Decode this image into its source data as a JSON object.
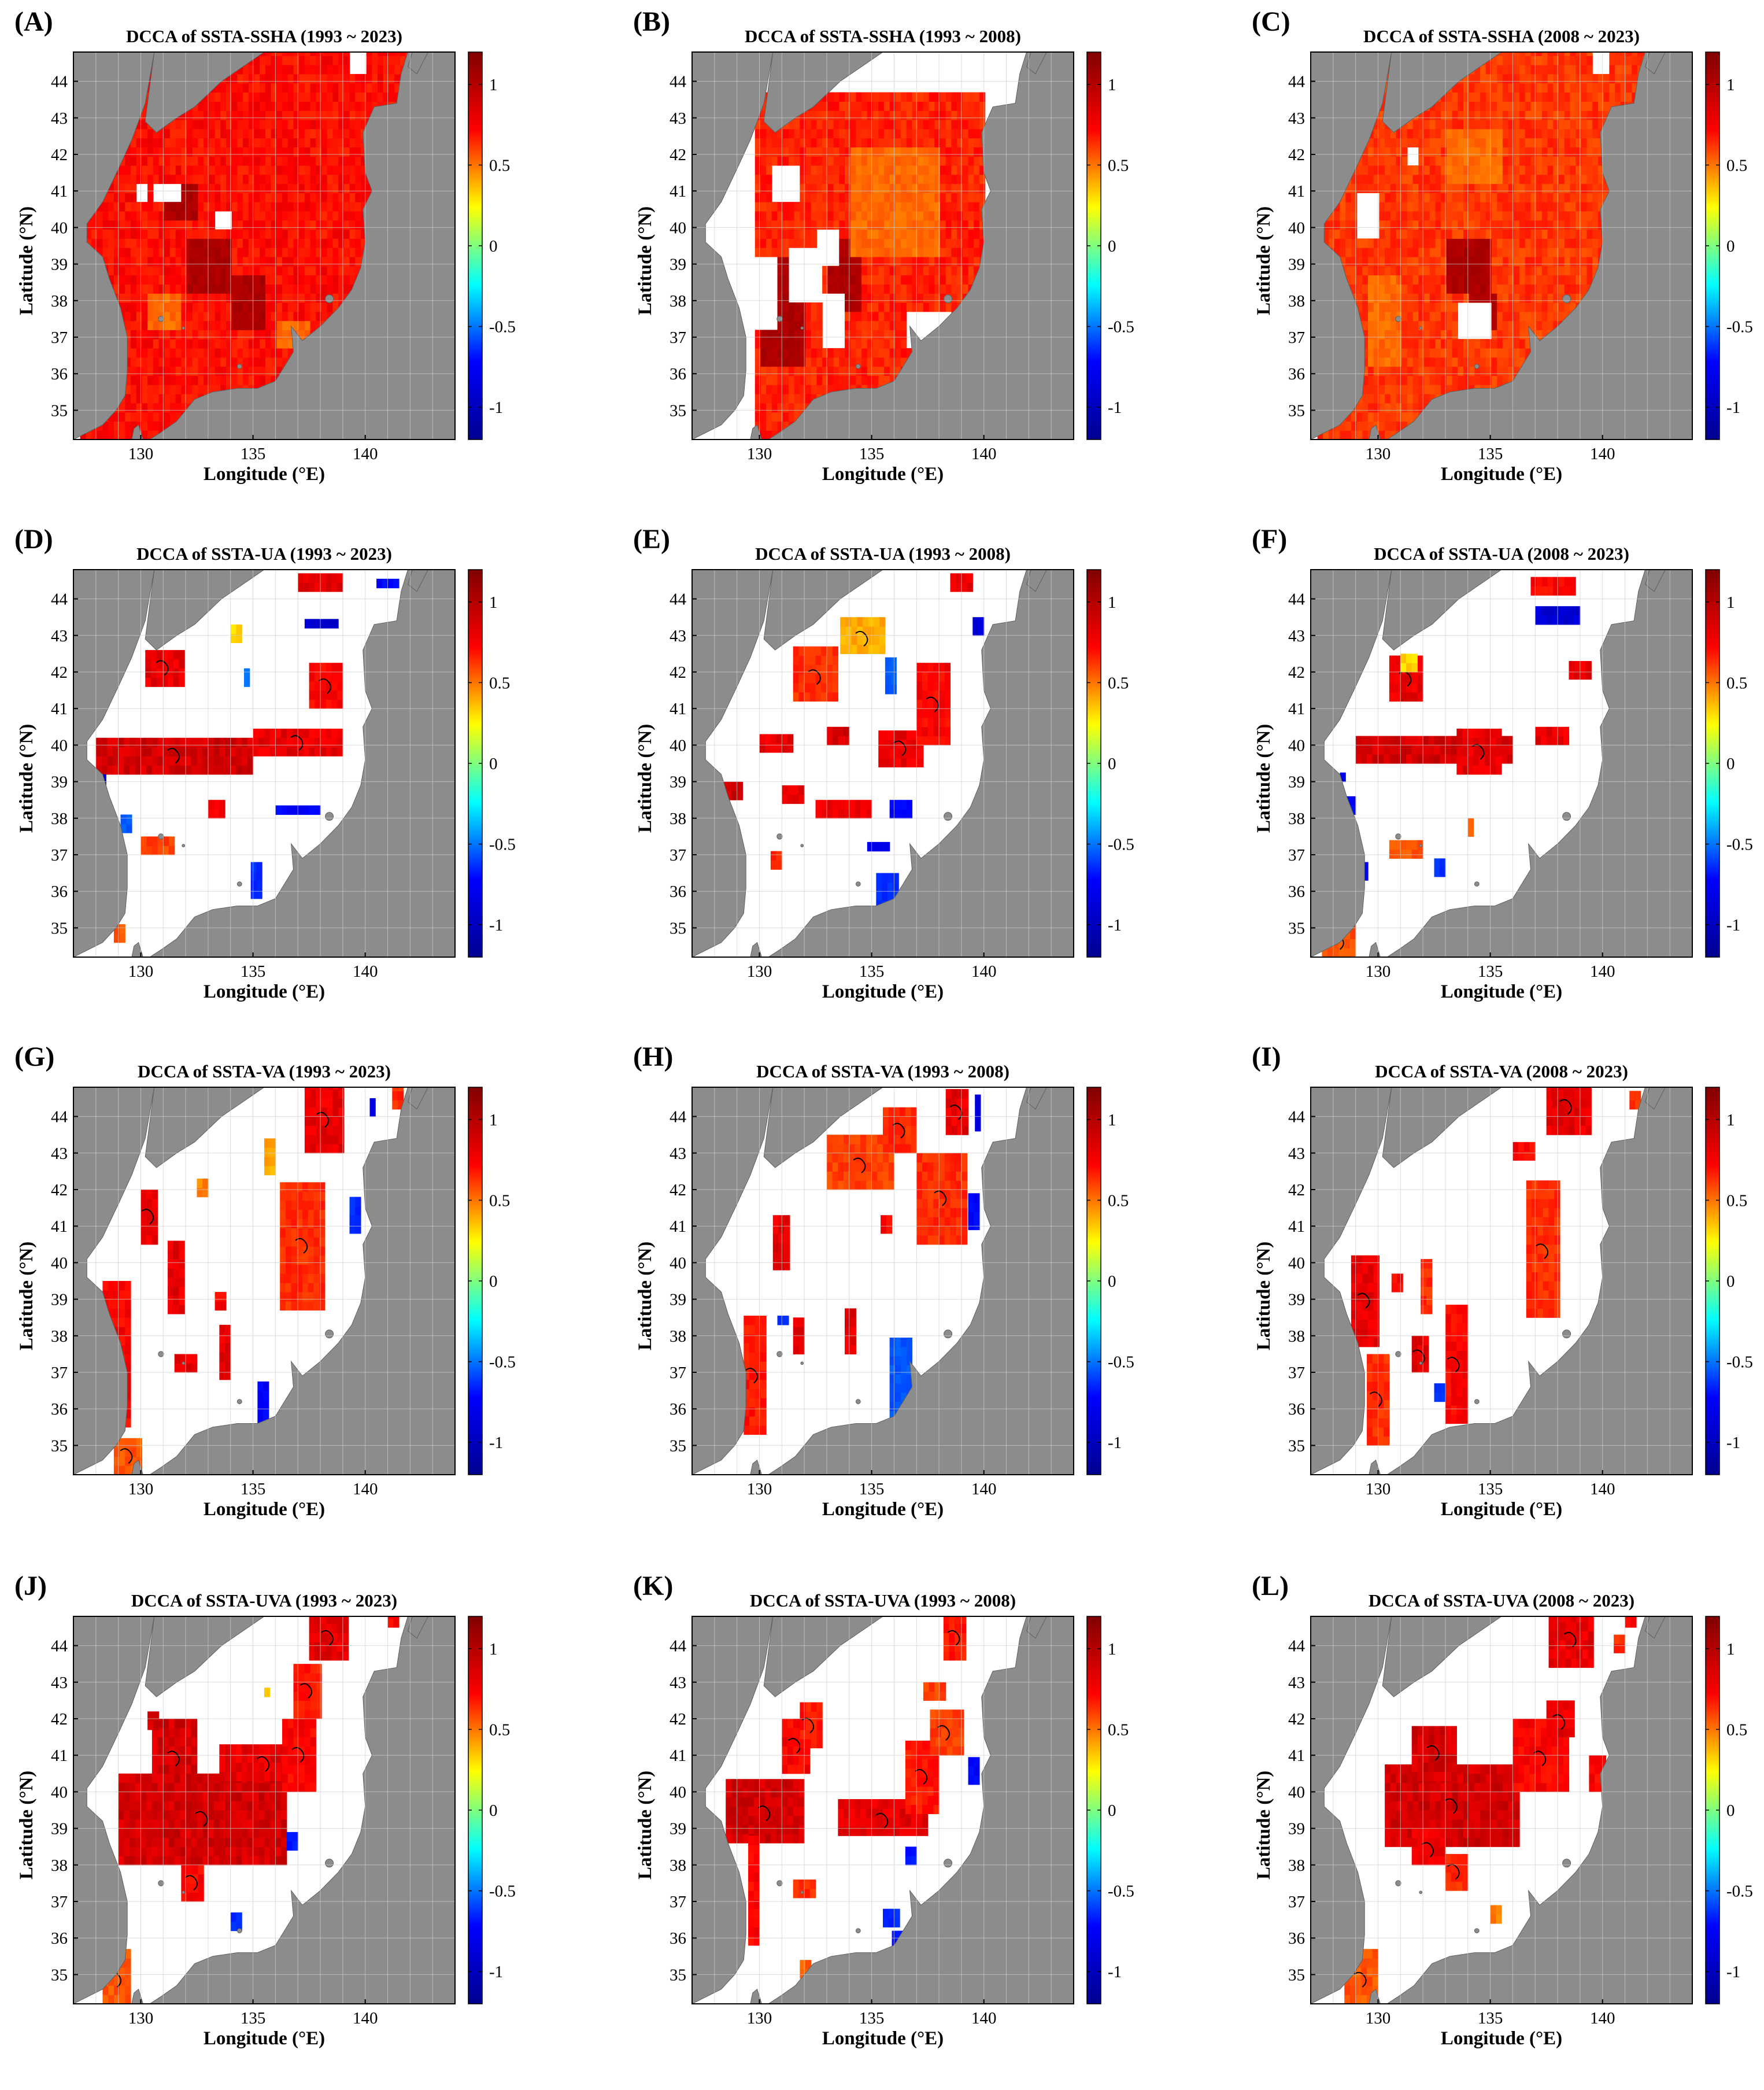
{
  "figure": {
    "colorbar": {
      "colors": [
        "#00008f",
        "#0000ff",
        "#00ffff",
        "#ffff00",
        "#ff0000",
        "#800000"
      ]
    },
    "land_color": "#8c8c8c",
    "sea_color": "#ffffff",
    "grid_color": "#cfcfcf",
    "contour_color": "#000000"
  },
  "chart_data": [
    {
      "id": "A",
      "type": "heatmap",
      "panel_label": "(A)",
      "title": "DCCA of SSTA-SSHA (1993 ~ 2023)",
      "variable_pair": "SSTA-SSHA",
      "period": "1993 ~ 2023",
      "xlabel": "Longitude (°E)",
      "ylabel": "Latitude (°N)",
      "xlim": [
        127,
        144
      ],
      "ylim": [
        34.2,
        44.8
      ],
      "xticks": [
        "130",
        "135",
        "140"
      ],
      "yticks": [
        "35",
        "36",
        "37",
        "38",
        "39",
        "40",
        "41",
        "42",
        "43",
        "44"
      ],
      "colorbar_ticks": [
        "1",
        "0.5",
        "0",
        "-0.5",
        "-1"
      ],
      "clim": [
        -1.2,
        1.2
      ],
      "coverage": "nearly full basin",
      "dominant_value": 0.95,
      "min_value": 0.4
    },
    {
      "id": "B",
      "type": "heatmap",
      "panel_label": "(B)",
      "title": "DCCA of SSTA-SSHA (1993 ~ 2008)",
      "variable_pair": "SSTA-SSHA",
      "period": "1993 ~ 2008",
      "xlabel": "Longitude (°E)",
      "ylabel": "Latitude (°N)",
      "xlim": [
        127,
        144
      ],
      "ylim": [
        34.2,
        44.8
      ],
      "xticks": [
        "130",
        "135",
        "140"
      ],
      "yticks": [
        "35",
        "36",
        "37",
        "38",
        "39",
        "40",
        "41",
        "42",
        "43",
        "44"
      ],
      "colorbar_ticks": [
        "1",
        "0.5",
        "0",
        "-0.5",
        "-1"
      ],
      "clim": [
        -1.2,
        1.2
      ],
      "coverage": "southern and central basin",
      "dominant_value": 0.9,
      "min_value": 0.6
    },
    {
      "id": "C",
      "type": "heatmap",
      "panel_label": "(C)",
      "title": "DCCA of SSTA-SSHA (2008 ~ 2023)",
      "variable_pair": "SSTA-SSHA",
      "period": "2008 ~ 2023",
      "xlabel": "Longitude (°E)",
      "ylabel": "Latitude (°N)",
      "xlim": [
        127,
        144
      ],
      "ylim": [
        34.2,
        44.8
      ],
      "xticks": [
        "130",
        "135",
        "140"
      ],
      "yticks": [
        "35",
        "36",
        "37",
        "38",
        "39",
        "40",
        "41",
        "42",
        "43",
        "44"
      ],
      "colorbar_ticks": [
        "1",
        "0.5",
        "0",
        "-0.5",
        "-1"
      ],
      "clim": [
        -1.2,
        1.2
      ],
      "coverage": "nearly full basin",
      "dominant_value": 0.85,
      "min_value": 0.35
    },
    {
      "id": "D",
      "type": "heatmap",
      "panel_label": "(D)",
      "title": "DCCA of SSTA-UA (1993 ~ 2023)",
      "variable_pair": "SSTA-UA",
      "period": "1993 ~ 2023",
      "xlabel": "Longitude (°E)",
      "ylabel": "Latitude (°N)",
      "xlim": [
        127,
        144
      ],
      "ylim": [
        34.2,
        44.8
      ],
      "xticks": [
        "130",
        "135",
        "140"
      ],
      "yticks": [
        "35",
        "36",
        "37",
        "38",
        "39",
        "40",
        "41",
        "42",
        "43",
        "44"
      ],
      "colorbar_ticks": [
        "1",
        "0.5",
        "0",
        "-0.5",
        "-1"
      ],
      "clim": [
        -1.2,
        1.2
      ],
      "coverage": "zonal band near 39.5°N, sparse patches",
      "dominant_value": 0.95,
      "min_value": -1.0
    },
    {
      "id": "E",
      "type": "heatmap",
      "panel_label": "(E)",
      "title": "DCCA of SSTA-UA (1993 ~ 2008)",
      "variable_pair": "SSTA-UA",
      "period": "1993 ~ 2008",
      "xlabel": "Longitude (°E)",
      "ylabel": "Latitude (°N)",
      "xlim": [
        127,
        144
      ],
      "ylim": [
        34.2,
        44.8
      ],
      "xticks": [
        "130",
        "135",
        "140"
      ],
      "yticks": [
        "35",
        "36",
        "37",
        "38",
        "39",
        "40",
        "41",
        "42",
        "43",
        "44"
      ],
      "colorbar_ticks": [
        "1",
        "0.5",
        "0",
        "-0.5",
        "-1"
      ],
      "clim": [
        -1.2,
        1.2
      ],
      "coverage": "sparse patches",
      "dominant_value": 0.9,
      "min_value": -0.95
    },
    {
      "id": "F",
      "type": "heatmap",
      "panel_label": "(F)",
      "title": "DCCA of SSTA-UA (2008 ~ 2023)",
      "variable_pair": "SSTA-UA",
      "period": "2008 ~ 2023",
      "xlabel": "Longitude (°E)",
      "ylabel": "Latitude (°N)",
      "xlim": [
        127,
        144
      ],
      "ylim": [
        34.2,
        44.8
      ],
      "xticks": [
        "130",
        "135",
        "140"
      ],
      "yticks": [
        "35",
        "36",
        "37",
        "38",
        "39",
        "40",
        "41",
        "42",
        "43",
        "44"
      ],
      "colorbar_ticks": [
        "1",
        "0.5",
        "0",
        "-0.5",
        "-1"
      ],
      "clim": [
        -1.2,
        1.2
      ],
      "coverage": "zonal band near 39.8°N, sparse patches",
      "dominant_value": 0.95,
      "min_value": -1.0
    },
    {
      "id": "G",
      "type": "heatmap",
      "panel_label": "(G)",
      "title": "DCCA of SSTA-VA (1993 ~ 2023)",
      "variable_pair": "SSTA-VA",
      "period": "1993 ~ 2023",
      "xlabel": "Longitude (°E)",
      "ylabel": "Latitude (°N)",
      "xlim": [
        127,
        144
      ],
      "ylim": [
        34.2,
        44.8
      ],
      "xticks": [
        "130",
        "135",
        "140"
      ],
      "yticks": [
        "35",
        "36",
        "37",
        "38",
        "39",
        "40",
        "41",
        "42",
        "43",
        "44"
      ],
      "colorbar_ticks": [
        "1",
        "0.5",
        "0",
        "-0.5",
        "-1"
      ],
      "clim": [
        -1.2,
        1.2
      ],
      "coverage": "meridional strips along coasts",
      "dominant_value": 0.9,
      "min_value": -0.9
    },
    {
      "id": "H",
      "type": "heatmap",
      "panel_label": "(H)",
      "title": "DCCA of SSTA-VA (1993 ~ 2008)",
      "variable_pair": "SSTA-VA",
      "period": "1993 ~ 2008",
      "xlabel": "Longitude (°E)",
      "ylabel": "Latitude (°N)",
      "xlim": [
        127,
        144
      ],
      "ylim": [
        34.2,
        44.8
      ],
      "xticks": [
        "130",
        "135",
        "140"
      ],
      "yticks": [
        "35",
        "36",
        "37",
        "38",
        "39",
        "40",
        "41",
        "42",
        "43",
        "44"
      ],
      "colorbar_ticks": [
        "1",
        "0.5",
        "0",
        "-0.5",
        "-1"
      ],
      "clim": [
        -1.2,
        1.2
      ],
      "coverage": "sparse strips",
      "dominant_value": 0.85,
      "min_value": -0.8
    },
    {
      "id": "I",
      "type": "heatmap",
      "panel_label": "(I)",
      "title": "DCCA of SSTA-VA (2008 ~ 2023)",
      "variable_pair": "SSTA-VA",
      "period": "2008 ~ 2023",
      "xlabel": "Longitude (°E)",
      "ylabel": "Latitude (°N)",
      "xlim": [
        127,
        144
      ],
      "ylim": [
        34.2,
        44.8
      ],
      "xticks": [
        "130",
        "135",
        "140"
      ],
      "yticks": [
        "35",
        "36",
        "37",
        "38",
        "39",
        "40",
        "41",
        "42",
        "43",
        "44"
      ],
      "colorbar_ticks": [
        "1",
        "0.5",
        "0",
        "-0.5",
        "-1"
      ],
      "clim": [
        -1.2,
        1.2
      ],
      "coverage": "meridional strips",
      "dominant_value": 0.9,
      "min_value": -0.8
    },
    {
      "id": "J",
      "type": "heatmap",
      "panel_label": "(J)",
      "title": "DCCA of SSTA-UVA (1993 ~ 2023)",
      "variable_pair": "SSTA-UVA",
      "period": "1993 ~ 2023",
      "xlabel": "Longitude (°E)",
      "ylabel": "Latitude (°N)",
      "xlim": [
        127,
        144
      ],
      "ylim": [
        34.2,
        44.8
      ],
      "xticks": [
        "130",
        "135",
        "140"
      ],
      "yticks": [
        "35",
        "36",
        "37",
        "38",
        "39",
        "40",
        "41",
        "42",
        "43",
        "44"
      ],
      "colorbar_ticks": [
        "1",
        "0.5",
        "0",
        "-0.5",
        "-1"
      ],
      "clim": [
        -1.2,
        1.2
      ],
      "coverage": "broad band 38–41°N",
      "dominant_value": 1.0,
      "min_value": -0.9
    },
    {
      "id": "K",
      "type": "heatmap",
      "panel_label": "(K)",
      "title": "DCCA of SSTA-UVA (1993 ~ 2008)",
      "variable_pair": "SSTA-UVA",
      "period": "1993 ~ 2008",
      "xlabel": "Longitude (°E)",
      "ylabel": "Latitude (°N)",
      "xlim": [
        127,
        144
      ],
      "ylim": [
        34.2,
        44.8
      ],
      "xticks": [
        "130",
        "135",
        "140"
      ],
      "yticks": [
        "35",
        "36",
        "37",
        "38",
        "39",
        "40",
        "41",
        "42",
        "43",
        "44"
      ],
      "colorbar_ticks": [
        "1",
        "0.5",
        "0",
        "-0.5",
        "-1"
      ],
      "clim": [
        -1.2,
        1.2
      ],
      "coverage": "band 38–41°N with gaps",
      "dominant_value": 0.95,
      "min_value": -0.9
    },
    {
      "id": "L",
      "type": "heatmap",
      "panel_label": "(L)",
      "title": "DCCA of SSTA-UVA (2008 ~ 2023)",
      "variable_pair": "SSTA-UVA",
      "period": "2008 ~ 2023",
      "xlabel": "Longitude (°E)",
      "ylabel": "Latitude (°N)",
      "xlim": [
        127,
        144
      ],
      "ylim": [
        34.2,
        44.8
      ],
      "xticks": [
        "130",
        "135",
        "140"
      ],
      "yticks": [
        "35",
        "36",
        "37",
        "38",
        "39",
        "40",
        "41",
        "42",
        "43",
        "44"
      ],
      "colorbar_ticks": [
        "1",
        "0.5",
        "0",
        "-0.5",
        "-1"
      ],
      "clim": [
        -1.2,
        1.2
      ],
      "coverage": "band 38.5–40.5°N",
      "dominant_value": 1.0,
      "min_value": 0.4
    }
  ]
}
